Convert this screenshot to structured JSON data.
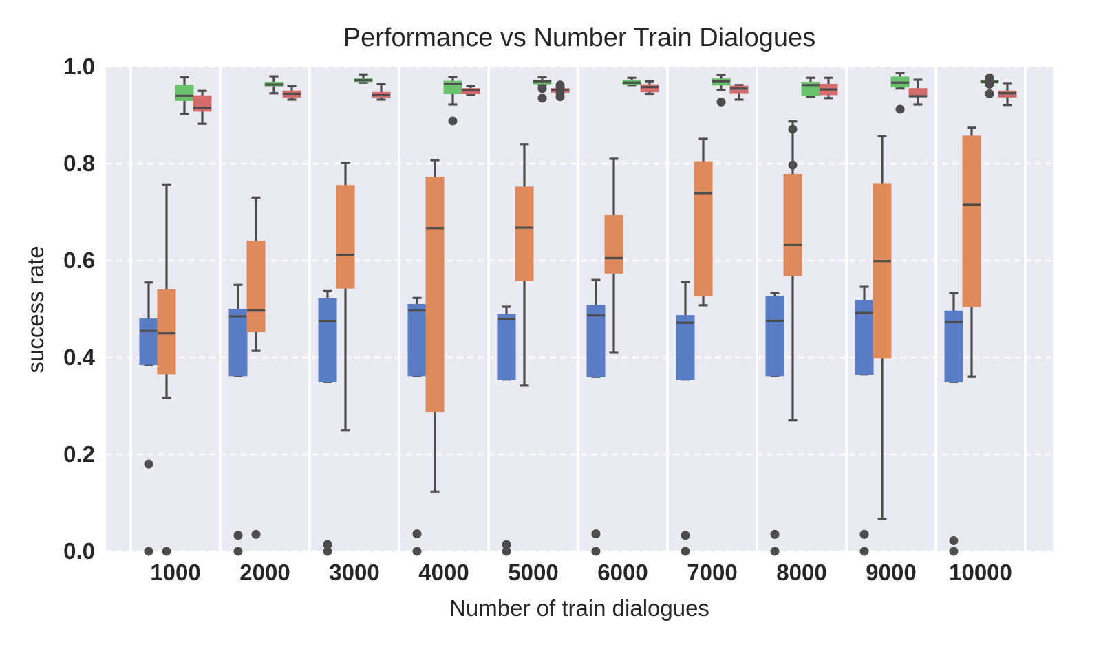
{
  "chart_data": {
    "type": "box",
    "title": "Performance vs Number Train Dialogues",
    "xlabel": "Number of train dialogues",
    "ylabel": "success rate",
    "ylim": [
      0,
      1
    ],
    "yticks": [
      "0.0",
      "0.2",
      "0.4",
      "0.6",
      "0.8",
      "1.0"
    ],
    "grid": true,
    "legend": "none",
    "categories": [
      "1000",
      "2000",
      "3000",
      "4000",
      "5000",
      "6000",
      "7000",
      "8000",
      "9000",
      "10000"
    ],
    "series_colors": [
      "#5a7cc4",
      "#de8a5b",
      "#6bc26e",
      "#d36c6c"
    ],
    "series": [
      {
        "boxes": [
          {
            "wlo": 0.385,
            "q1": 0.385,
            "med": 0.455,
            "q3": 0.48,
            "whi": 0.555,
            "fliers": [
              0.18,
              0.0
            ]
          },
          {
            "wlo": 0.362,
            "q1": 0.362,
            "med": 0.485,
            "q3": 0.5,
            "whi": 0.55,
            "fliers": [
              0.033,
              0.0
            ]
          },
          {
            "wlo": 0.35,
            "q1": 0.35,
            "med": 0.475,
            "q3": 0.522,
            "whi": 0.537,
            "fliers": [
              0.014,
              0.0
            ]
          },
          {
            "wlo": 0.362,
            "q1": 0.362,
            "med": 0.497,
            "q3": 0.51,
            "whi": 0.523,
            "fliers": [
              0.036,
              0.0
            ]
          },
          {
            "wlo": 0.355,
            "q1": 0.355,
            "med": 0.48,
            "q3": 0.49,
            "whi": 0.505,
            "fliers": [
              0.014,
              0.0
            ]
          },
          {
            "wlo": 0.36,
            "q1": 0.36,
            "med": 0.487,
            "q3": 0.508,
            "whi": 0.56,
            "fliers": [
              0.036,
              0.0
            ]
          },
          {
            "wlo": 0.355,
            "q1": 0.355,
            "med": 0.472,
            "q3": 0.487,
            "whi": 0.556,
            "fliers": [
              0.033,
              0.0
            ]
          },
          {
            "wlo": 0.362,
            "q1": 0.362,
            "med": 0.476,
            "q3": 0.527,
            "whi": 0.533,
            "fliers": [
              0.035,
              0.0
            ]
          },
          {
            "wlo": 0.365,
            "q1": 0.365,
            "med": 0.492,
            "q3": 0.518,
            "whi": 0.546,
            "fliers": [
              0.035,
              0.0
            ]
          },
          {
            "wlo": 0.35,
            "q1": 0.35,
            "med": 0.473,
            "q3": 0.496,
            "whi": 0.533,
            "fliers": [
              0.022,
              0.0
            ]
          }
        ]
      },
      {
        "boxes": [
          {
            "wlo": 0.317,
            "q1": 0.366,
            "med": 0.45,
            "q3": 0.54,
            "whi": 0.757,
            "fliers": [
              0.0
            ]
          },
          {
            "wlo": 0.414,
            "q1": 0.453,
            "med": 0.497,
            "q3": 0.64,
            "whi": 0.73,
            "fliers": [
              0.035
            ]
          },
          {
            "wlo": 0.25,
            "q1": 0.543,
            "med": 0.612,
            "q3": 0.755,
            "whi": 0.802,
            "fliers": []
          },
          {
            "wlo": 0.123,
            "q1": 0.287,
            "med": 0.667,
            "q3": 0.772,
            "whi": 0.807,
            "fliers": []
          },
          {
            "wlo": 0.342,
            "q1": 0.559,
            "med": 0.668,
            "q3": 0.752,
            "whi": 0.84,
            "fliers": []
          },
          {
            "wlo": 0.41,
            "q1": 0.574,
            "med": 0.605,
            "q3": 0.693,
            "whi": 0.81,
            "fliers": []
          },
          {
            "wlo": 0.508,
            "q1": 0.527,
            "med": 0.739,
            "q3": 0.804,
            "whi": 0.851,
            "fliers": []
          },
          {
            "wlo": 0.27,
            "q1": 0.569,
            "med": 0.632,
            "q3": 0.778,
            "whi": 0.887,
            "fliers": [
              0.871,
              0.797
            ]
          },
          {
            "wlo": 0.067,
            "q1": 0.399,
            "med": 0.599,
            "q3": 0.759,
            "whi": 0.856,
            "fliers": []
          },
          {
            "wlo": 0.36,
            "q1": 0.505,
            "med": 0.715,
            "q3": 0.857,
            "whi": 0.874,
            "fliers": []
          }
        ]
      },
      {
        "boxes": [
          {
            "wlo": 0.902,
            "q1": 0.93,
            "med": 0.94,
            "q3": 0.962,
            "whi": 0.978,
            "fliers": []
          },
          {
            "wlo": 0.945,
            "q1": 0.96,
            "med": 0.963,
            "q3": 0.968,
            "whi": 0.98,
            "fliers": []
          },
          {
            "wlo": 0.967,
            "q1": 0.969,
            "med": 0.972,
            "q3": 0.975,
            "whi": 0.984,
            "fliers": []
          },
          {
            "wlo": 0.922,
            "q1": 0.945,
            "med": 0.965,
            "q3": 0.97,
            "whi": 0.979,
            "fliers": [
              0.888
            ]
          },
          {
            "wlo": 0.962,
            "q1": 0.964,
            "med": 0.97,
            "q3": 0.972,
            "whi": 0.978,
            "fliers": [
              0.955,
              0.935
            ]
          },
          {
            "wlo": 0.962,
            "q1": 0.963,
            "med": 0.967,
            "q3": 0.972,
            "whi": 0.977,
            "fliers": []
          },
          {
            "wlo": 0.952,
            "q1": 0.962,
            "med": 0.97,
            "q3": 0.975,
            "whi": 0.983,
            "fliers": [
              0.927
            ]
          },
          {
            "wlo": 0.938,
            "q1": 0.94,
            "med": 0.962,
            "q3": 0.968,
            "whi": 0.977,
            "fliers": []
          },
          {
            "wlo": 0.955,
            "q1": 0.958,
            "med": 0.967,
            "q3": 0.979,
            "whi": 0.987,
            "fliers": [
              0.912
            ]
          },
          {
            "wlo": 0.966,
            "q1": 0.966,
            "med": 0.969,
            "q3": 0.972,
            "whi": 0.972,
            "fliers": [
              0.977,
              0.964,
              0.944
            ]
          }
        ]
      },
      {
        "boxes": [
          {
            "wlo": 0.882,
            "q1": 0.908,
            "med": 0.915,
            "q3": 0.94,
            "whi": 0.95,
            "fliers": []
          },
          {
            "wlo": 0.932,
            "q1": 0.937,
            "med": 0.944,
            "q3": 0.95,
            "whi": 0.96,
            "fliers": []
          },
          {
            "wlo": 0.932,
            "q1": 0.937,
            "med": 0.942,
            "q3": 0.947,
            "whi": 0.964,
            "fliers": []
          },
          {
            "wlo": 0.942,
            "q1": 0.945,
            "med": 0.951,
            "q3": 0.955,
            "whi": 0.96,
            "fliers": []
          },
          {
            "wlo": 0.945,
            "q1": 0.947,
            "med": 0.952,
            "q3": 0.955,
            "whi": 0.958,
            "fliers": [
              0.962,
              0.952,
              0.938
            ]
          },
          {
            "wlo": 0.944,
            "q1": 0.948,
            "med": 0.958,
            "q3": 0.963,
            "whi": 0.97,
            "fliers": []
          },
          {
            "wlo": 0.932,
            "q1": 0.946,
            "med": 0.955,
            "q3": 0.96,
            "whi": 0.962,
            "fliers": []
          },
          {
            "wlo": 0.935,
            "q1": 0.942,
            "med": 0.953,
            "q3": 0.964,
            "whi": 0.977,
            "fliers": []
          },
          {
            "wlo": 0.922,
            "q1": 0.938,
            "med": 0.939,
            "q3": 0.955,
            "whi": 0.973,
            "fliers": []
          },
          {
            "wlo": 0.921,
            "q1": 0.937,
            "med": 0.945,
            "q3": 0.95,
            "whi": 0.966,
            "fliers": []
          }
        ]
      }
    ]
  }
}
